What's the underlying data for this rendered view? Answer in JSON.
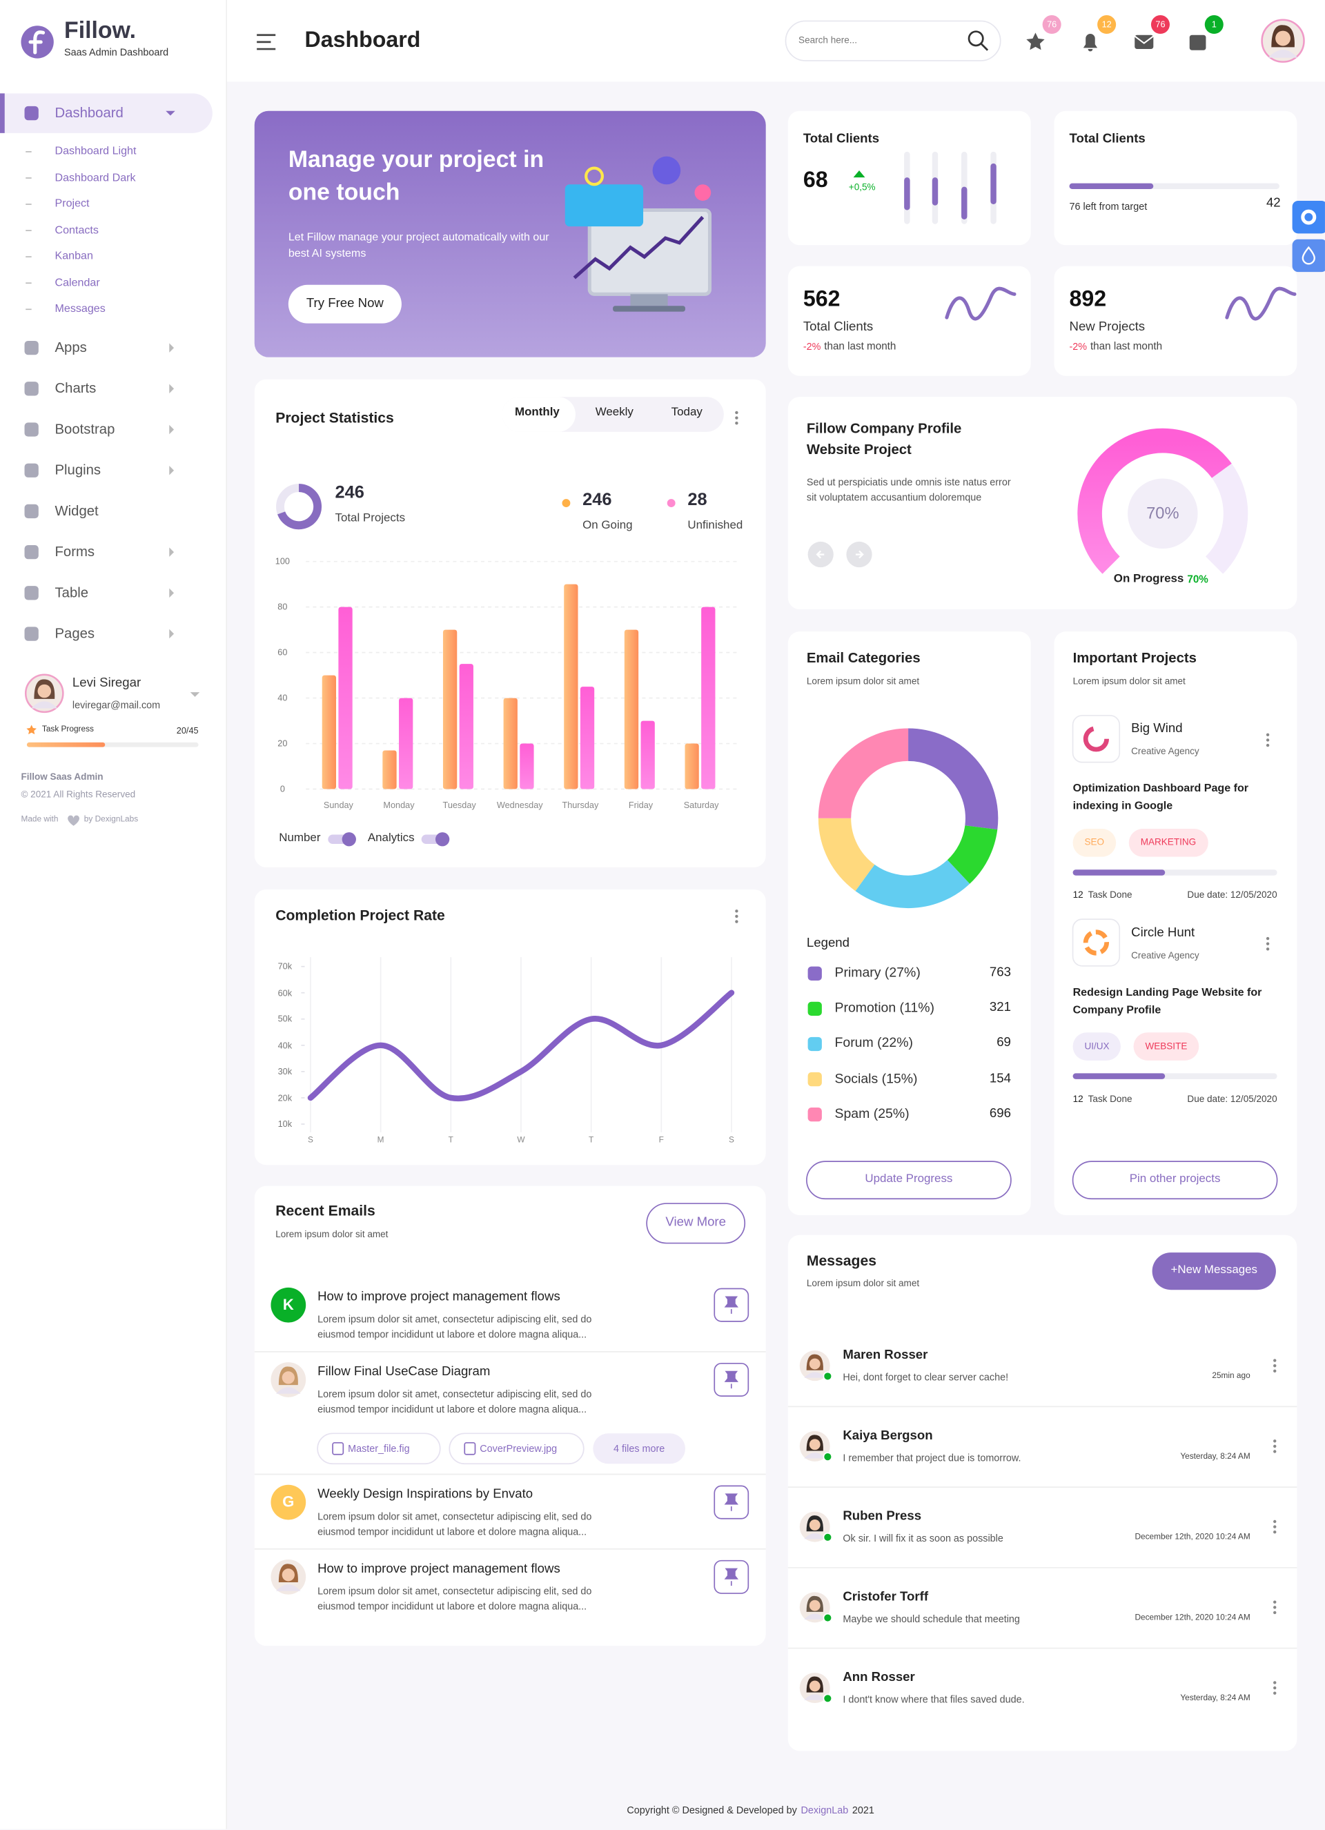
{
  "sidebar": {
    "brand": {
      "name": "Fillow.",
      "tagline": "Saas Admin Dashboard"
    },
    "menu": [
      {
        "label": "Dashboard",
        "children": [
          "Dashboard Light",
          "Dashboard Dark",
          "Project",
          "Contacts",
          "Kanban",
          "Calendar",
          "Messages"
        ]
      },
      {
        "label": "Apps"
      },
      {
        "label": "Charts"
      },
      {
        "label": "Bootstrap"
      },
      {
        "label": "Plugins"
      },
      {
        "label": "Widget"
      },
      {
        "label": "Forms"
      },
      {
        "label": "Table"
      },
      {
        "label": "Pages"
      }
    ],
    "user": {
      "name": "Levi Siregar",
      "email": "leviregar@mail.com",
      "task_label": "Task Progress",
      "task_progress": "20/45"
    },
    "footer": {
      "title": "Fillow Saas Admin",
      "copyright": "© 2021 All Rights Reserved",
      "made_with": "Made with",
      "by": "by DexignLabs"
    }
  },
  "header": {
    "title": "Dashboard",
    "search_placeholder": "Search here...",
    "badges": [
      76,
      12,
      76,
      1
    ]
  },
  "banner": {
    "title": "Manage your project in one touch",
    "text": "Let Fillow manage your project automatically with our best AI systems",
    "button": "Try Free Now"
  },
  "stats": [
    {
      "title": "Total Clients",
      "value": 68,
      "change": "+0,5%"
    },
    {
      "title": "Total Clients",
      "note": "76 left from target",
      "value": 42
    },
    {
      "value": 562,
      "label": "Total Clients",
      "change": "-2%",
      "suffix": "than last month"
    },
    {
      "value": 892,
      "label": "New Projects",
      "change": "-2%",
      "suffix": "than last month"
    }
  ],
  "project_statistics": {
    "title": "Project Statistics",
    "tabs": [
      "Monthly",
      "Weekly",
      "Today"
    ],
    "total": {
      "value": 246,
      "label": "Total Projects"
    },
    "on_going": {
      "value": 246,
      "label": "On Going"
    },
    "unfinished": {
      "value": 28,
      "label": "Unfinished"
    },
    "chart": {
      "type": "bar",
      "categories": [
        "Sunday",
        "Monday",
        "Tuesday",
        "Wednesday",
        "Thursday",
        "Friday",
        "Saturday"
      ],
      "ylim": [
        0,
        100
      ],
      "yticks": [
        0,
        20,
        40,
        60,
        80,
        100
      ],
      "grid": true,
      "series": [
        {
          "name": "Number",
          "color": "#fd9e5e",
          "values": [
            50,
            17,
            70,
            40,
            90,
            70,
            20
          ]
        },
        {
          "name": "Analytics",
          "color": "#f24be0",
          "values": [
            80,
            40,
            55,
            20,
            45,
            30,
            80
          ]
        }
      ]
    }
  },
  "completion_rate": {
    "title": "Completion Project Rate",
    "chart": {
      "type": "line",
      "categories": [
        "S",
        "M",
        "T",
        "W",
        "T",
        "F",
        "S"
      ],
      "ylim": [
        10000,
        70000
      ],
      "yticks": [
        {
          "value": 10000,
          "label": "10k"
        },
        {
          "value": 20000,
          "label": "20k"
        },
        {
          "value": 30000,
          "label": "30k"
        },
        {
          "value": 40000,
          "label": "40k"
        },
        {
          "value": 50000,
          "label": "50k"
        },
        {
          "value": 60000,
          "label": "60k"
        },
        {
          "value": 70000,
          "label": "70k"
        }
      ],
      "series": [
        {
          "color": "#8560c6",
          "values": [
            20000,
            40000,
            20000,
            30000,
            50000,
            40000,
            60000
          ]
        }
      ]
    }
  },
  "company_profile": {
    "title": "Fillow Company Profile Website Project",
    "text": "Sed ut perspiciatis unde omnis iste natus error sit voluptatem accusantium doloremque",
    "progress": {
      "value": 70,
      "value_label": "70%",
      "label": "On Progress"
    }
  },
  "email_categories": {
    "title": "Email Categories",
    "subtitle": "Lorem ipsum dolor sit amet",
    "legend_title": "Legend",
    "chart": {
      "type": "pie",
      "items": [
        {
          "label": "Primary (27%)",
          "value": 27,
          "count": 763,
          "color": "#8a6cc8"
        },
        {
          "label": "Promotion (11%)",
          "value": 11,
          "count": 321,
          "color": "#2bd92f"
        },
        {
          "label": "Forum (22%)",
          "value": 22,
          "count": 69,
          "color": "#62cdf1"
        },
        {
          "label": "Socials (15%)",
          "value": 15,
          "count": 154,
          "color": "#ffd97d"
        },
        {
          "label": "Spam (25%)",
          "value": 25,
          "count": 696,
          "color": "#ff87b3"
        }
      ]
    },
    "button": "Update Progress"
  },
  "important_projects": {
    "title": "Important Projects",
    "subtitle": "Lorem ipsum dolor sit amet",
    "button": "Pin other projects",
    "projects": [
      {
        "name": "Big Wind",
        "company": "Creative Agency",
        "title": "Optimization Dashboard Page for indexing in Google",
        "tags": [
          "SEO",
          "MARKETING"
        ],
        "tasks": 12,
        "tasks_label": "Task Done",
        "due": "Due date: 12/05/2020"
      },
      {
        "name": "Circle Hunt",
        "company": "Creative Agency",
        "title": "Redesign Landing Page Website for Company Profile",
        "tags": [
          "UI/UX",
          "WEBSITE"
        ],
        "tasks": 12,
        "tasks_label": "Task Done",
        "due": "Due date: 12/05/2020"
      }
    ]
  },
  "recent_emails": {
    "title": "Recent Emails",
    "subtitle": "Lorem ipsum dolor sit amet",
    "button": "View More",
    "items": [
      {
        "avatar": "K",
        "subject": "How to improve project management flows",
        "body": "Lorem ipsum dolor sit amet, consectetur adipiscing elit, sed do eiusmod tempor incididunt ut labore et dolore magna aliqua..."
      },
      {
        "subject": "Fillow Final UseCase Diagram",
        "body": "Lorem ipsum dolor sit amet, consectetur adipiscing elit, sed do eiusmod tempor incididunt ut labore et dolore magna aliqua...",
        "attachments": [
          "Master_file.fig",
          "CoverPreview.jpg",
          "4 files more"
        ]
      },
      {
        "avatar": "G",
        "subject": "Weekly Design Inspirations by Envato",
        "body": "Lorem ipsum dolor sit amet, consectetur adipiscing elit, sed do eiusmod tempor incididunt ut labore et dolore magna aliqua..."
      },
      {
        "subject": "How to improve project management flows",
        "body": "Lorem ipsum dolor sit amet, consectetur adipiscing elit, sed do eiusmod tempor incididunt ut labore et dolore magna aliqua..."
      }
    ]
  },
  "messages": {
    "title": "Messages",
    "subtitle": "Lorem ipsum dolor sit amet",
    "button": "+New Messages",
    "items": [
      {
        "name": "Maren Rosser",
        "text": "Hei, dont forget to clear server cache!",
        "time": "25min ago"
      },
      {
        "name": "Kaiya Bergson",
        "text": "I remember that project due is tomorrow.",
        "time": "Yesterday, 8:24 AM"
      },
      {
        "name": "Ruben Press",
        "text": "Ok sir. I will fix it as soon as possible",
        "time": "December 12th, 2020 10:24 AM"
      },
      {
        "name": "Cristofer Torff",
        "text": "Maybe we should schedule that meeting",
        "time": "December 12th, 2020 10:24 AM"
      },
      {
        "name": "Ann Rosser",
        "text": "I dont't know where that files saved dude.",
        "time": "Yesterday, 8:24 AM"
      }
    ]
  },
  "footer": {
    "text": "Copyright © Designed & Developed by",
    "link": "DexignLab",
    "year": "2021"
  }
}
